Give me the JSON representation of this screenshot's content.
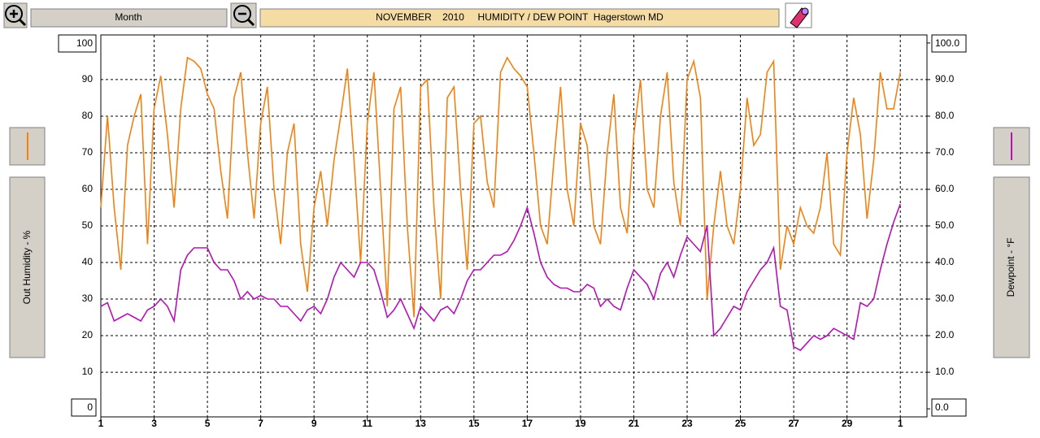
{
  "chart_data": {
    "type": "line",
    "title": "NOVEMBER    2010     HUMIDITY / DEW POINT  Hagerstown MD",
    "period": "Month",
    "y_label": "Out Humidity - %",
    "y2_label": "Dewpoint - °F",
    "x": [
      1,
      1.25,
      1.5,
      1.75,
      2,
      2.25,
      2.5,
      2.75,
      3,
      3.25,
      3.5,
      3.75,
      4,
      4.25,
      4.5,
      4.75,
      5,
      5.25,
      5.5,
      5.75,
      6,
      6.25,
      6.5,
      6.75,
      7,
      7.25,
      7.5,
      7.75,
      8,
      8.25,
      8.5,
      8.75,
      9,
      9.25,
      9.5,
      9.75,
      10,
      10.25,
      10.5,
      10.75,
      11,
      11.25,
      11.5,
      11.75,
      12,
      12.25,
      12.5,
      12.75,
      13,
      13.25,
      13.5,
      13.75,
      14,
      14.25,
      14.5,
      14.75,
      15,
      15.25,
      15.5,
      15.75,
      16,
      16.25,
      16.5,
      16.75,
      17,
      17.25,
      17.5,
      17.75,
      18,
      18.25,
      18.5,
      18.75,
      19,
      19.25,
      19.5,
      19.75,
      20,
      20.25,
      20.5,
      20.75,
      21,
      21.25,
      21.5,
      21.75,
      22,
      22.25,
      22.5,
      22.75,
      23,
      23.25,
      23.5,
      23.75,
      24,
      24.25,
      24.5,
      24.75,
      25,
      25.25,
      25.5,
      25.75,
      26,
      26.25,
      26.5,
      26.75,
      27,
      27.25,
      27.5,
      27.75,
      28,
      28.25,
      28.5,
      28.75,
      29,
      29.25,
      29.5,
      29.75,
      30,
      30.25,
      30.5,
      30.75,
      31
    ],
    "series": [
      {
        "color": "#f08214",
        "values": [
          55,
          80,
          55,
          38,
          72,
          80,
          86,
          45,
          82,
          91,
          75,
          55,
          82,
          96,
          95,
          93,
          86,
          82,
          65,
          52,
          85,
          92,
          70,
          52,
          78,
          88,
          60,
          45,
          70,
          78,
          45,
          32,
          55,
          65,
          50,
          68,
          80,
          93,
          68,
          40,
          78,
          92,
          60,
          28,
          82,
          88,
          50,
          25,
          88,
          90,
          55,
          30,
          85,
          88,
          60,
          38,
          78,
          80,
          62,
          55,
          92,
          96,
          93,
          91,
          88,
          70,
          50,
          45,
          68,
          88,
          60,
          50,
          78,
          72,
          50,
          45,
          70,
          86,
          55,
          48,
          75,
          90,
          60,
          55,
          80,
          92,
          62,
          50,
          90,
          95,
          85,
          30,
          50,
          65,
          50,
          45,
          60,
          85,
          72,
          75,
          92,
          95,
          38,
          50,
          45,
          55,
          50,
          48,
          55,
          70,
          45,
          42,
          70,
          85,
          75,
          52,
          68,
          92,
          82,
          82,
          92
        ]
      },
      {
        "color": "#b414b4",
        "axis": "y2",
        "values": [
          28,
          29,
          24,
          25,
          26,
          25,
          24,
          27,
          28,
          30,
          28,
          24,
          38,
          42,
          44,
          44,
          44,
          40,
          38,
          38,
          35,
          30,
          32,
          30,
          31,
          30,
          30,
          28,
          28,
          26,
          24,
          27,
          28,
          26,
          30,
          36,
          40,
          38,
          36,
          40,
          40,
          38,
          32,
          25,
          27,
          30,
          26,
          22,
          28,
          26,
          24,
          27,
          28,
          26,
          30,
          35,
          38,
          38,
          40,
          42,
          42,
          43,
          46,
          50,
          55,
          48,
          40,
          36,
          34,
          33,
          33,
          32,
          32,
          34,
          33,
          28,
          30,
          28,
          27,
          33,
          38,
          36,
          34,
          30,
          37,
          40,
          36,
          42,
          47,
          45,
          43,
          50,
          20,
          22,
          25,
          28,
          27,
          32,
          35,
          38,
          40,
          44,
          28,
          27,
          17,
          16,
          18,
          20,
          19,
          20,
          22,
          21,
          20,
          19,
          29,
          28,
          30,
          38,
          45,
          51,
          56
        ]
      }
    ],
    "xlim": [
      1,
      32
    ],
    "xticks": [
      1,
      3,
      5,
      7,
      9,
      11,
      13,
      15,
      17,
      19,
      21,
      23,
      25,
      27,
      29,
      {
        "value": 31,
        "label": "1"
      }
    ],
    "ylim": [
      -2.2,
      102.2
    ],
    "yticks": [
      0,
      10,
      20,
      30,
      40,
      50,
      60,
      70,
      80,
      90,
      100
    ],
    "y2lim": [
      -2.2,
      102.2
    ],
    "y2ticks": [
      {
        "value": 0,
        "label": "0.0"
      },
      {
        "value": 10,
        "label": "10.0"
      },
      {
        "value": 20,
        "label": "20.0"
      },
      {
        "value": 30,
        "label": "30.0"
      },
      {
        "value": 40,
        "label": "40.0"
      },
      {
        "value": 50,
        "label": "50.0"
      },
      {
        "value": 60,
        "label": "60.0"
      },
      {
        "value": 70,
        "label": "70.0"
      },
      {
        "value": 80,
        "label": "80.0"
      },
      {
        "value": 90,
        "label": "90.0"
      },
      {
        "value": 100,
        "label": "100.0"
      }
    ],
    "grid": true
  }
}
